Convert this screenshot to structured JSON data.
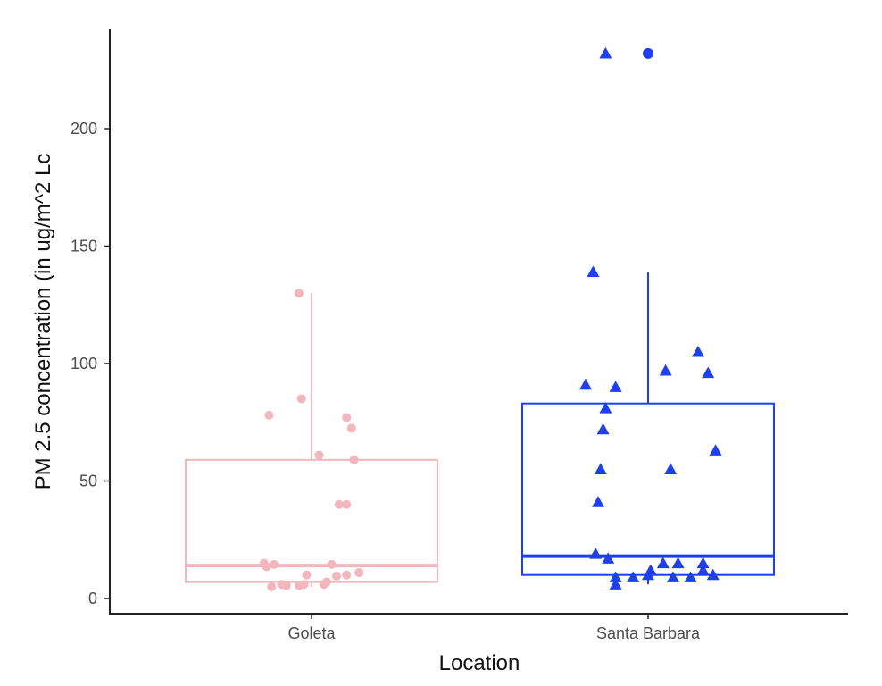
{
  "chart_data": {
    "type": "boxplot",
    "xlabel": "Location",
    "ylabel": "PM 2.5 concentration (in ug/m^2 Lc",
    "categories": [
      "Goleta",
      "Santa Barbara"
    ],
    "ylim": [
      -6,
      242
    ],
    "yticks": [
      0,
      50,
      100,
      150,
      200
    ],
    "grid": false,
    "legend": "none",
    "groups": [
      {
        "category": "Goleta",
        "color": "#f4b6bd",
        "marker": "circle",
        "box": {
          "min": 5,
          "q1": 7,
          "median": 14,
          "q3": 59,
          "max": 130
        },
        "outliers": [],
        "points": [
          {
            "x": -0.17,
            "y": 78
          },
          {
            "x": -0.05,
            "y": 130
          },
          {
            "x": -0.05,
            "y": 5.5
          },
          {
            "x": -0.02,
            "y": 10
          },
          {
            "x": -0.03,
            "y": 6
          },
          {
            "x": -0.18,
            "y": 13.5
          },
          {
            "x": -0.19,
            "y": 15
          },
          {
            "x": -0.15,
            "y": 14.5
          },
          {
            "x": -0.16,
            "y": 5
          },
          {
            "x": -0.12,
            "y": 6
          },
          {
            "x": -0.1,
            "y": 5.5
          },
          {
            "x": 0.05,
            "y": 6
          },
          {
            "x": 0.06,
            "y": 7
          },
          {
            "x": 0.08,
            "y": 14.5
          },
          {
            "x": 0.1,
            "y": 9.5
          },
          {
            "x": 0.14,
            "y": 10
          },
          {
            "x": 0.11,
            "y": 40
          },
          {
            "x": 0.14,
            "y": 40
          },
          {
            "x": 0.19,
            "y": 11
          },
          {
            "x": 0.03,
            "y": 61
          },
          {
            "x": 0.14,
            "y": 77
          },
          {
            "x": 0.16,
            "y": 72.5
          },
          {
            "x": 0.17,
            "y": 59
          },
          {
            "x": -0.04,
            "y": 85
          }
        ]
      },
      {
        "category": "Santa Barbara",
        "color": "#1f3ff5",
        "marker": "triangle",
        "box": {
          "min": 6,
          "q1": 10,
          "median": 18,
          "q3": 83,
          "max": 139
        },
        "outliers": [
          232
        ],
        "points": [
          {
            "x": -0.17,
            "y": 232
          },
          {
            "x": -0.22,
            "y": 139
          },
          {
            "x": 0.2,
            "y": 105
          },
          {
            "x": 0.07,
            "y": 97
          },
          {
            "x": 0.24,
            "y": 96
          },
          {
            "x": -0.25,
            "y": 91
          },
          {
            "x": -0.13,
            "y": 90
          },
          {
            "x": -0.17,
            "y": 81
          },
          {
            "x": -0.18,
            "y": 72
          },
          {
            "x": 0.27,
            "y": 63
          },
          {
            "x": -0.19,
            "y": 55
          },
          {
            "x": 0.09,
            "y": 55
          },
          {
            "x": -0.2,
            "y": 41
          },
          {
            "x": -0.21,
            "y": 19
          },
          {
            "x": -0.16,
            "y": 17
          },
          {
            "x": -0.13,
            "y": 9
          },
          {
            "x": -0.13,
            "y": 6
          },
          {
            "x": -0.06,
            "y": 9
          },
          {
            "x": 0.0,
            "y": 10
          },
          {
            "x": 0.01,
            "y": 12
          },
          {
            "x": 0.06,
            "y": 15
          },
          {
            "x": 0.12,
            "y": 15
          },
          {
            "x": 0.1,
            "y": 9
          },
          {
            "x": 0.17,
            "y": 9
          },
          {
            "x": 0.22,
            "y": 15
          },
          {
            "x": 0.22,
            "y": 12
          },
          {
            "x": 0.26,
            "y": 10
          }
        ]
      }
    ]
  }
}
